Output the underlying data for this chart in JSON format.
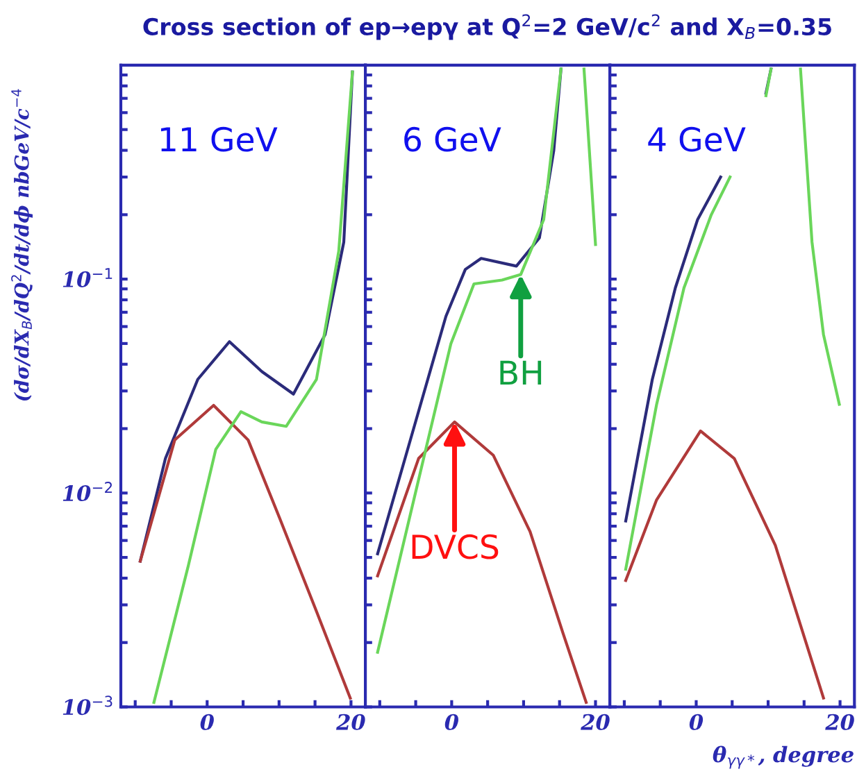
{
  "chart_data": [
    {
      "type": "line",
      "title": "Cross section of ep→epγ at Q$^{2}$=2 GeV/c$^{2}$ and X$_{B}$=0.35",
      "ylabel": "(dσ/dX$_{B}$/dQ$^{2}$/dt/dϕ nbGeV/c$^{−4}$",
      "log": "y",
      "xlim": [
        -12,
        22
      ],
      "ylim": [
        0.001,
        1
      ],
      "xticks": [
        {
          "value": -10,
          "label": null
        },
        {
          "value": -5,
          "label": null
        },
        0,
        {
          "value": 5,
          "label": null
        },
        {
          "value": 10,
          "label": null
        },
        {
          "value": 15,
          "label": null
        },
        20
      ],
      "yticks": [
        {
          "value": 0.001,
          "label": "10$^{−3}$"
        },
        {
          "value": 0.002,
          "label": null
        },
        {
          "value": 0.003,
          "label": null
        },
        {
          "value": 0.004,
          "label": null
        },
        {
          "value": 0.005,
          "label": null
        },
        {
          "value": 0.006,
          "label": null
        },
        {
          "value": 0.007,
          "label": null
        },
        {
          "value": 0.008,
          "label": null
        },
        {
          "value": 0.009,
          "label": null
        },
        {
          "value": 0.01,
          "label": "10$^{−2}$"
        },
        {
          "value": 0.02,
          "label": null
        },
        {
          "value": 0.03,
          "label": null
        },
        {
          "value": 0.04,
          "label": null
        },
        {
          "value": 0.05,
          "label": null
        },
        {
          "value": 0.06,
          "label": null
        },
        {
          "value": 0.07,
          "label": null
        },
        {
          "value": 0.08,
          "label": null
        },
        {
          "value": 0.09,
          "label": null
        },
        {
          "value": 0.1,
          "label": "10$^{−1}$"
        },
        {
          "value": 0.2,
          "label": null
        },
        {
          "value": 0.3,
          "label": null
        },
        {
          "value": 0.4,
          "label": null
        },
        {
          "value": 0.5,
          "label": null
        },
        {
          "value": 0.6,
          "label": null
        },
        {
          "value": 0.7,
          "label": null
        },
        {
          "value": 0.8,
          "label": null
        },
        {
          "value": 0.9,
          "label": null
        }
      ],
      "grid": false,
      "annotations": [
        "11 GeV"
      ],
      "series": [
        {
          "color": "#2b2b7a",
          "x": [
            -9.3,
            -5.8,
            -1.3,
            3.1,
            7.6,
            12,
            16.4,
            19,
            20.2
          ],
          "values": [
            0.0048,
            0.0145,
            0.034,
            0.051,
            0.037,
            0.029,
            0.055,
            0.149,
            0.93
          ]
        },
        {
          "color": "#b03a3a",
          "x": [
            -9.3,
            -4.5,
            0.9,
            5.7,
            10.1,
            15.2,
            19.9
          ],
          "values": [
            0.0048,
            0.0177,
            0.0257,
            0.0177,
            0.0076,
            0.0028,
            0.0011
          ]
        },
        {
          "color": "#6ad65a",
          "x": [
            -7.4,
            -2.6,
            1.2,
            4.7,
            7.6,
            11,
            15.2,
            18.3,
            20.2
          ],
          "values": [
            0.00105,
            0.0046,
            0.016,
            0.024,
            0.0215,
            0.0205,
            0.034,
            0.135,
            0.93
          ]
        }
      ]
    },
    {
      "type": "line",
      "log": "y",
      "tick_labels": "x",
      "xlim": [
        -12,
        22
      ],
      "ylim": [
        0.001,
        1
      ],
      "xticks": [
        {
          "value": -10,
          "label": null
        },
        {
          "value": -5,
          "label": null
        },
        0,
        {
          "value": 5,
          "label": null
        },
        {
          "value": 10,
          "label": null
        },
        {
          "value": 15,
          "label": null
        },
        20
      ],
      "yticks": [
        {
          "value": 0.001,
          "label": null
        },
        {
          "value": 0.002,
          "label": null
        },
        {
          "value": 0.003,
          "label": null
        },
        {
          "value": 0.004,
          "label": null
        },
        {
          "value": 0.005,
          "label": null
        },
        {
          "value": 0.006,
          "label": null
        },
        {
          "value": 0.007,
          "label": null
        },
        {
          "value": 0.008,
          "label": null
        },
        {
          "value": 0.009,
          "label": null
        },
        {
          "value": 0.01,
          "label": null
        },
        {
          "value": 0.02,
          "label": null
        },
        {
          "value": 0.03,
          "label": null
        },
        {
          "value": 0.04,
          "label": null
        },
        {
          "value": 0.05,
          "label": null
        },
        {
          "value": 0.06,
          "label": null
        },
        {
          "value": 0.07,
          "label": null
        },
        {
          "value": 0.08,
          "label": null
        },
        {
          "value": 0.09,
          "label": null
        },
        {
          "value": 0.1,
          "label": null
        },
        {
          "value": 0.2,
          "label": null
        },
        {
          "value": 0.3,
          "label": null
        },
        {
          "value": 0.4,
          "label": null
        },
        {
          "value": 0.5,
          "label": null
        },
        {
          "value": 0.6,
          "label": null
        },
        {
          "value": 0.7,
          "label": null
        },
        {
          "value": 0.8,
          "label": null
        },
        {
          "value": 0.9,
          "label": null
        }
      ],
      "grid": false,
      "annotations": [
        "6 GeV",
        {
          "text": "BH",
          "x": 9.6,
          "y": 0.105
        },
        {
          "text": "DVCS",
          "x": 0.4,
          "y": 0.0215
        }
      ],
      "series": [
        {
          "color": "#2b2b7a",
          "x": [
            -10.3,
            -5.2,
            -0.8,
            1.9,
            4.1,
            9,
            12.2,
            14.2,
            15.2
          ],
          "values": [
            0.0052,
            0.0205,
            0.067,
            0.111,
            0.125,
            0.115,
            0.156,
            0.4,
            0.96
          ]
        },
        {
          "color": "#b03a3a",
          "x": [
            -10.3,
            -4.6,
            0.4,
            5.8,
            10.9,
            15.5,
            18.7
          ],
          "values": [
            0.0041,
            0.0145,
            0.0215,
            0.015,
            0.0066,
            0.0022,
            0.00105
          ]
        },
        {
          "color": "#6ad65a",
          "x": [
            -10.3,
            -3.9,
            -0.1,
            3.1,
            7,
            9.6,
            12.8,
            15.2,
            16.8,
            18.4,
            20
          ],
          "values": [
            0.0018,
            0.0145,
            0.05,
            0.095,
            0.099,
            0.105,
            0.19,
            0.96,
            null,
            0.96,
            0.145
          ]
        }
      ]
    },
    {
      "type": "line",
      "log": "y",
      "tick_labels": "x",
      "xlabel": "θ$_{γγ*}$, degree",
      "xlim": [
        -12,
        22
      ],
      "ylim": [
        0.001,
        1
      ],
      "xticks": [
        {
          "value": -10,
          "label": null
        },
        {
          "value": -5,
          "label": null
        },
        0,
        {
          "value": 5,
          "label": null
        },
        {
          "value": 10,
          "label": null
        },
        {
          "value": 15,
          "label": null
        },
        20
      ],
      "yticks": [
        {
          "value": 0.001,
          "label": null
        },
        {
          "value": 0.002,
          "label": null
        },
        {
          "value": 0.003,
          "label": null
        },
        {
          "value": 0.004,
          "label": null
        },
        {
          "value": 0.005,
          "label": null
        },
        {
          "value": 0.006,
          "label": null
        },
        {
          "value": 0.007,
          "label": null
        },
        {
          "value": 0.008,
          "label": null
        },
        {
          "value": 0.009,
          "label": null
        },
        {
          "value": 0.01,
          "label": null
        },
        {
          "value": 0.02,
          "label": null
        },
        {
          "value": 0.03,
          "label": null
        },
        {
          "value": 0.04,
          "label": null
        },
        {
          "value": 0.05,
          "label": null
        },
        {
          "value": 0.06,
          "label": null
        },
        {
          "value": 0.07,
          "label": null
        },
        {
          "value": 0.08,
          "label": null
        },
        {
          "value": 0.09,
          "label": null
        },
        {
          "value": 0.1,
          "label": null
        },
        {
          "value": 0.2,
          "label": null
        },
        {
          "value": 0.3,
          "label": null
        },
        {
          "value": 0.4,
          "label": null
        },
        {
          "value": 0.5,
          "label": null
        },
        {
          "value": 0.6,
          "label": null
        },
        {
          "value": 0.7,
          "label": null
        },
        {
          "value": 0.8,
          "label": null
        },
        {
          "value": 0.9,
          "label": null
        }
      ],
      "grid": false,
      "annotations": [
        "4 GeV"
      ],
      "series": [
        {
          "color": "#2b2b7a",
          "x": [
            -9.8,
            -6.1,
            -2.9,
            0.2,
            3.4,
            6.5,
            9.7,
            10.4
          ],
          "values": [
            0.0074,
            0.034,
            0.091,
            0.19,
            0.3,
            null,
            0.74,
            0.96
          ]
        },
        {
          "color": "#b03a3a",
          "x": [
            -9.8,
            -5.5,
            0.6,
            5.3,
            11,
            17.7
          ],
          "values": [
            0.0039,
            0.0093,
            0.0195,
            0.0145,
            0.0057,
            0.0011
          ]
        },
        {
          "color": "#6ad65a",
          "x": [
            -9.8,
            -5.5,
            -1.7,
            2.1,
            4.7,
            7,
            9.7,
            10.4,
            12.5,
            14.5,
            16.1,
            17.7,
            19.9
          ],
          "values": [
            0.0044,
            0.026,
            0.091,
            0.2,
            0.3,
            null,
            0.72,
            0.96,
            null,
            0.96,
            0.149,
            0.055,
            0.026
          ]
        }
      ]
    }
  ]
}
